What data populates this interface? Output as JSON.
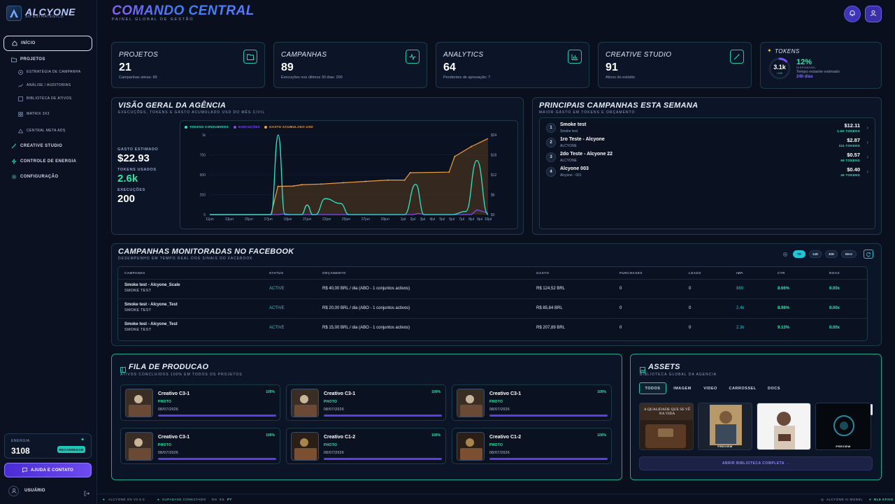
{
  "brand": {
    "name": "ALCYONE",
    "subtitle": "SO ESTRATÉGICO"
  },
  "colors": {
    "accent": "#1ec6b8",
    "purple": "#5b3fe0",
    "teal_line": "#2ee6c8",
    "purple_line": "#7c4dff",
    "orange_line": "#f0a040"
  },
  "sidebar": {
    "items": [
      {
        "label": "INÍCIO",
        "icon": "home-icon"
      },
      {
        "label": "PROJETOS",
        "icon": "folder-icon"
      },
      {
        "label": "ESTRATÉGIA DE CAMPANHA",
        "icon": "target-icon"
      },
      {
        "label": "ANÁLISE / AUDITORIAS",
        "icon": "trend-icon"
      },
      {
        "label": "BIBLIOTECA DE ATIVOS",
        "icon": "library-icon"
      },
      {
        "label": "MATRIX 3X3",
        "icon": "grid-icon"
      },
      {
        "label": "CENTRAL META ADS",
        "icon": "meta-icon"
      },
      {
        "label": "CREATIVE STUDIO",
        "icon": "wand-icon"
      },
      {
        "label": "CONTROLE DE ENERGIA",
        "icon": "bolt-icon"
      },
      {
        "label": "CONFIGURAÇÃO",
        "icon": "gear-icon"
      }
    ],
    "energy": {
      "label": "ENERGIA",
      "value": "3108",
      "button": "RECARREGAR"
    },
    "help": "AJUDA E CONTATO",
    "user": "USUÁRIO"
  },
  "header": {
    "title": "COMANDO CENTRAL",
    "subtitle": "PAINEL GLOBAL DE GESTÃO"
  },
  "stats": [
    {
      "title": "PROJETOS",
      "value": "21",
      "sub": "Campanhas ativas: 89",
      "icon": "folder-icon"
    },
    {
      "title": "CAMPANHAS",
      "value": "89",
      "sub": "Execuções nos últimos 30 dias: 200",
      "icon": "pulse-icon"
    },
    {
      "title": "ANALYTICS",
      "value": "64",
      "sub": "Pendentes de aprovação: 7",
      "icon": "bar-chart-icon"
    },
    {
      "title": "CREATIVE STUDIO",
      "value": "91",
      "sub": "Ativos do estúdio",
      "icon": "wand-icon"
    }
  ],
  "tokens": {
    "title": "TOKENS",
    "ring_value": "3.1k",
    "ring_sub": "/ 24K",
    "percent": "12%",
    "disp": "DISPONÍVEL",
    "rest_label": "Tempo restante estimado",
    "days": "240 dias",
    "fraction": 0.12
  },
  "overview": {
    "title": "VISÃO GERAL DA AGÊNCIA",
    "subtitle": "EXECUÇÕES, TOKENS E GASTO ACUMULADO USD DO MÊS CIVIL",
    "spend_label": "GASTO ESTIMADO",
    "spend": "$22.93",
    "tokens_label": "TOKENS USADOS",
    "tokens": "2.6k",
    "exec_label": "EXECUÇÕES",
    "exec": "200"
  },
  "chart_data": {
    "type": "line",
    "legend": [
      "TOKENS CONSUMIDOS",
      "EXECUÇÕES",
      "GASTO ACUMULADO USD"
    ],
    "x": [
      "11jun",
      "13jun",
      "15jun",
      "17jun",
      "19jun",
      "21jun",
      "23jun",
      "25jun",
      "27jun",
      "29jun",
      "1jul",
      "2jul",
      "3jul",
      "4jul",
      "5jul",
      "6jul",
      "7jul",
      "8jul",
      "9jul",
      "10jul"
    ],
    "y_left_ticks": [
      "1k",
      "750",
      "500",
      "250",
      "0"
    ],
    "y_right_ticks": [
      "$24",
      "$18",
      "$12",
      "$6",
      "$0"
    ],
    "ylim_left": [
      0,
      1000
    ],
    "ylim_right": [
      0,
      24
    ],
    "series": [
      {
        "name": "TOKENS CONSUMIDOS",
        "axis": "left",
        "values": [
          0,
          0,
          0,
          0,
          0,
          0,
          0,
          0,
          0,
          0,
          0,
          0,
          0,
          0,
          0,
          0,
          0,
          0,
          0,
          0
        ],
        "points": [
          [
            0,
            0
          ],
          [
            0.14,
            0
          ],
          [
            0.22,
            0
          ],
          [
            0.246,
            1000
          ],
          [
            0.27,
            0
          ],
          [
            0.33,
            0
          ],
          [
            0.35,
            120
          ],
          [
            0.37,
            0
          ],
          [
            0.38,
            0
          ],
          [
            0.415,
            200
          ],
          [
            0.47,
            140
          ],
          [
            0.5,
            0
          ],
          [
            0.58,
            0
          ],
          [
            0.62,
            0
          ],
          [
            0.7,
            0
          ],
          [
            0.74,
            380
          ],
          [
            0.77,
            0
          ],
          [
            0.87,
            0
          ],
          [
            0.92,
            40
          ],
          [
            0.96,
            680
          ],
          [
            1,
            0
          ]
        ]
      },
      {
        "name": "EXECUÇÕES",
        "axis": "left",
        "points": [
          [
            0,
            0
          ],
          [
            0.25,
            0
          ],
          [
            0.27,
            10
          ],
          [
            0.29,
            0
          ],
          [
            0.73,
            0
          ],
          [
            0.75,
            15
          ],
          [
            0.77,
            0
          ],
          [
            0.94,
            0
          ],
          [
            0.96,
            60
          ],
          [
            1,
            20
          ]
        ]
      },
      {
        "name": "GASTO ACUMULADO USD",
        "axis": "right",
        "points": [
          [
            0,
            0
          ],
          [
            0.22,
            0
          ],
          [
            0.245,
            8.5
          ],
          [
            0.3,
            8.6
          ],
          [
            0.33,
            9.0
          ],
          [
            0.4,
            9.2
          ],
          [
            0.48,
            9.6
          ],
          [
            0.56,
            10.0
          ],
          [
            0.64,
            10.4
          ],
          [
            0.7,
            10.4
          ],
          [
            0.72,
            12.6
          ],
          [
            0.86,
            12.8
          ],
          [
            0.88,
            17.5
          ],
          [
            0.94,
            20.5
          ],
          [
            1,
            22.9
          ]
        ]
      }
    ]
  },
  "top_campaigns": {
    "title": "PRINCIPAIS CAMPANHAS ESTA SEMANA",
    "subtitle": "MAIOR GASTO EM TOKENS E ORÇAMENTO",
    "rows": [
      {
        "n": "1",
        "name": "Smoke test",
        "sub": "Smoke test",
        "amount": "$12.11",
        "tokens": "1.6K TOKENS"
      },
      {
        "n": "2",
        "name": "1ro Teste - Alcyone",
        "sub": "ALCYONE",
        "amount": "$2.87",
        "tokens": "331 TOKENS"
      },
      {
        "n": "3",
        "name": "2do Teste - Alcyone 22",
        "sub": "ALCYONE",
        "amount": "$0.57",
        "tokens": "66 TOKENS"
      },
      {
        "n": "4",
        "name": "Alcyone 003",
        "sub": "Alcyone · 001",
        "amount": "$0.40",
        "tokens": "46 TOKENS"
      }
    ]
  },
  "facebook": {
    "title": "CAMPANHAS MONITORADAS NO FACEBOOK",
    "subtitle": "DESEMPENHO EM TEMPO REAL DOS SINAIS DO FACEBOOK",
    "ranges": [
      "7D",
      "14D",
      "30D",
      "MAX"
    ],
    "columns": [
      "CAMPANHA",
      "STATUS",
      "ORÇAMENTO",
      "GASTO",
      "PURCHASES",
      "LEADS",
      "IMP.",
      "CTR",
      "ROAS"
    ],
    "rows": [
      {
        "name": "Smoke test - Alcyone_Scale",
        "sub": "SMOKE TEST",
        "status": "ACTIVE",
        "budget": "R$ 40,00 BRL / dia (ABO - 1 conjuntos activos)",
        "spend": "R$ 124,52 BRL",
        "purchases": "0",
        "leads": "0",
        "imp": "889",
        "ctr": "8.66%",
        "roas": "0.00x"
      },
      {
        "name": "Smoke test - Alcyone_Test",
        "sub": "SMOKE TEST",
        "status": "ACTIVE",
        "budget": "R$ 20,00 BRL / dia (ABO - 1 conjuntos activos)",
        "spend": "R$ 85,84 BRL",
        "purchases": "0",
        "leads": "0",
        "imp": "2.4k",
        "ctr": "8.98%",
        "roas": "0.00x"
      },
      {
        "name": "Smoke test - Alcyone_Test",
        "sub": "SMOKE TEST",
        "status": "ACTIVE",
        "budget": "R$ 15,00 BRL / dia (ABO - 1 conjuntos activos)",
        "spend": "R$ 207,89 BRL",
        "purchases": "0",
        "leads": "0",
        "imp": "2.3k",
        "ctr": "9.13%",
        "roas": "0.00x"
      }
    ]
  },
  "queue": {
    "title": "FILA DE PRODUCAO",
    "subtitle": "ATIVOS CONCLUIDOS 100% EM TODOS OS PROJETOS",
    "items": [
      {
        "name": "Creativo C3-1",
        "type": "PHOTO",
        "date": "08/07/2026",
        "pct": "100%"
      },
      {
        "name": "Creativo C3-1",
        "type": "PHOTO",
        "date": "08/07/2026",
        "pct": "100%"
      },
      {
        "name": "Creativo C3-1",
        "type": "PHOTO",
        "date": "08/07/2026",
        "pct": "100%"
      },
      {
        "name": "Creativo C3-1",
        "type": "PHOTO",
        "date": "08/07/2026",
        "pct": "100%"
      },
      {
        "name": "Creativo C1-2",
        "type": "PHOTO",
        "date": "08/07/2026",
        "pct": "100%"
      },
      {
        "name": "Creativo C1-2",
        "type": "PHOTO",
        "date": "08/07/2026",
        "pct": "100%"
      }
    ]
  },
  "assets": {
    "title": "ASSETS",
    "subtitle": "BIBLIOTECA GLOBAL DA AGENCIA",
    "tabs": [
      "TODOS",
      "IMAGEM",
      "VIDEO",
      "CARROSSEL",
      "DOCS"
    ],
    "thumb_text": "A QUALIDADE QUE SE VÊ NA VIDA",
    "preview": "PREVIEW",
    "open_button": "ABRIR BIBLIOTECA COMPLETA →"
  },
  "footer": {
    "version": "ALCYONE OS V2.5.0",
    "status": "SUPABASE CONECTADO",
    "langs": [
      "EN",
      "ES",
      "PT"
    ],
    "model": "ALCYONE AI MODEL",
    "mode": "RL8 ATIVO"
  }
}
